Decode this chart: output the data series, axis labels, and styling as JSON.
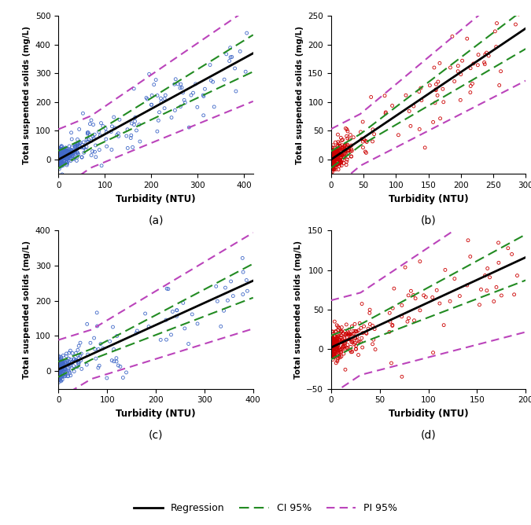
{
  "subplots": [
    {
      "label": "(a)",
      "color": "#4169C8",
      "xlim": [
        0,
        420
      ],
      "ylim": [
        -50,
        500
      ],
      "xticks": [
        0,
        100,
        200,
        300,
        400
      ],
      "yticks": [
        0,
        100,
        200,
        300,
        400,
        500
      ],
      "slope": 0.88,
      "intercept": 0,
      "ci_band": 22,
      "pi_band": 90,
      "ci_fan": 0.12,
      "pi_fan": 0.22,
      "n": 350,
      "cluster_n": 240,
      "cluster_scale": 18,
      "spread_cluster": 18,
      "spread_full": 55,
      "seed": 42
    },
    {
      "label": "(b)",
      "color": "#CC0000",
      "xlim": [
        0,
        300
      ],
      "ylim": [
        -25,
        250
      ],
      "xticks": [
        0,
        50,
        100,
        150,
        200,
        250,
        300
      ],
      "yticks": [
        0,
        50,
        100,
        150,
        200,
        250
      ],
      "slope": 0.76,
      "intercept": 0,
      "ci_band": 10,
      "pi_band": 45,
      "ci_fan": 0.1,
      "pi_fan": 0.18,
      "n": 300,
      "cluster_n": 230,
      "cluster_scale": 12,
      "spread_cluster": 12,
      "spread_full": 32,
      "seed": 123
    },
    {
      "label": "(c)",
      "color": "#4169C8",
      "xlim": [
        0,
        400
      ],
      "ylim": [
        -50,
        400
      ],
      "xticks": [
        0,
        100,
        200,
        300,
        400
      ],
      "yticks": [
        0,
        100,
        200,
        300,
        400
      ],
      "slope": 0.63,
      "intercept": 5,
      "ci_band": 15,
      "pi_band": 70,
      "ci_fan": 0.1,
      "pi_fan": 0.2,
      "n": 200,
      "cluster_n": 140,
      "cluster_scale": 16,
      "spread_cluster": 18,
      "spread_full": 45,
      "seed": 77
    },
    {
      "label": "(d)",
      "color": "#CC0000",
      "xlim": [
        0,
        200
      ],
      "ylim": [
        -50,
        150
      ],
      "xticks": [
        0,
        50,
        100,
        150,
        200
      ],
      "yticks": [
        -50,
        0,
        50,
        100,
        150
      ],
      "slope": 0.57,
      "intercept": 2,
      "ci_band": 12,
      "pi_band": 52,
      "ci_fan": 0.1,
      "pi_fan": 0.25,
      "n": 280,
      "cluster_n": 220,
      "cluster_scale": 10,
      "spread_cluster": 10,
      "spread_full": 28,
      "seed": 200
    }
  ],
  "reg_color": "#000000",
  "ci_color": "#228B22",
  "pi_color": "#BB44BB",
  "reg_lw": 2.0,
  "ci_lw": 1.5,
  "pi_lw": 1.5,
  "xlabel": "Turbidity (NTU)",
  "ylabel": "Total suspended solids (mg/L)",
  "legend_labels": [
    "Regression",
    "CI 95%",
    "PI 95%"
  ]
}
